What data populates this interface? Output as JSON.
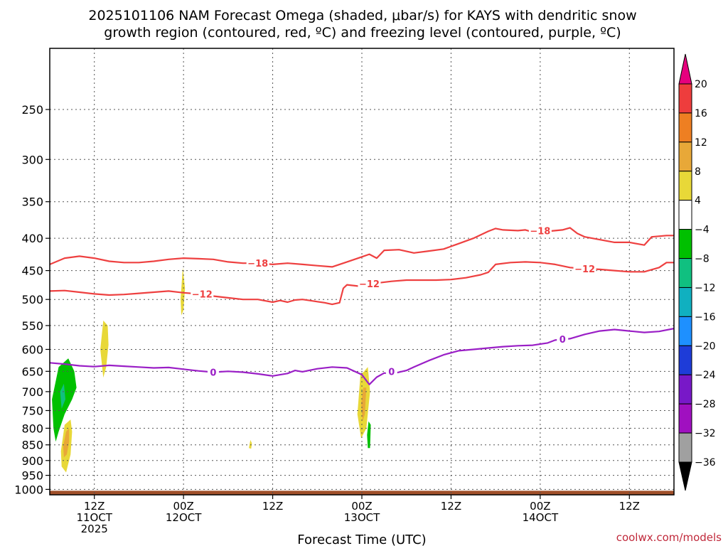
{
  "chart_data": {
    "type": "heatmap",
    "title_lines": [
      "2025101106 NAM Forecast Omega (shaded, μbar/s) for KAYS with dendritic snow",
      "growth region (contoured, red, ºC) and freezing level (contoured, purple, ºC)"
    ],
    "xlabel": "Forecast Time (UTC)",
    "credit": "coolwx.com/models",
    "x_range_hours": [
      0,
      84
    ],
    "y_range_hpa": [
      1020,
      200
    ],
    "y_ticks": [
      250,
      300,
      350,
      400,
      450,
      500,
      550,
      600,
      650,
      700,
      750,
      800,
      850,
      900,
      950,
      1000
    ],
    "x_ticks": [
      {
        "hour": 6,
        "lines": [
          "12Z",
          "11OCT",
          "2025"
        ]
      },
      {
        "hour": 18,
        "lines": [
          "00Z",
          "12OCT"
        ]
      },
      {
        "hour": 30,
        "lines": [
          "12Z"
        ]
      },
      {
        "hour": 42,
        "lines": [
          "00Z",
          "13OCT"
        ]
      },
      {
        "hour": 54,
        "lines": [
          "12Z"
        ]
      },
      {
        "hour": 66,
        "lines": [
          "00Z",
          "14OCT"
        ]
      },
      {
        "hour": 78,
        "lines": [
          "12Z"
        ]
      }
    ],
    "colorbar": {
      "levels": [
        20,
        16,
        12,
        8,
        4,
        -4,
        -8,
        -12,
        -16,
        -20,
        -24,
        -28,
        -32,
        -36
      ],
      "labels": [
        "20",
        "16",
        "12",
        "8",
        "4",
        "−4",
        "−8",
        "−12",
        "−16",
        "−20",
        "−24",
        "−28",
        "−32",
        "−36"
      ],
      "colors": [
        "#e6007e",
        "#ee3d3d",
        "#ee7f22",
        "#e8a838",
        "#e8d838",
        "#ffffff",
        "#00c000",
        "#10c080",
        "#10b0c0",
        "#1e90ff",
        "#1e3cd8",
        "#7818c8",
        "#a010c0",
        "#a0a0a0",
        "#000000"
      ]
    },
    "contours": [
      {
        "name": "-18C",
        "label": "−18",
        "color": "#ee4040",
        "points": [
          [
            0,
            440
          ],
          [
            2,
            430
          ],
          [
            4,
            427
          ],
          [
            6,
            430
          ],
          [
            8,
            435
          ],
          [
            10,
            437
          ],
          [
            12,
            437
          ],
          [
            14,
            435
          ],
          [
            16,
            432
          ],
          [
            18,
            430
          ],
          [
            20,
            431
          ],
          [
            22,
            432
          ],
          [
            24,
            436
          ],
          [
            26,
            438
          ],
          [
            28,
            438
          ],
          [
            30,
            440
          ],
          [
            32,
            438
          ],
          [
            34,
            440
          ],
          [
            36,
            442
          ],
          [
            38,
            444
          ],
          [
            40,
            436
          ],
          [
            42,
            428
          ],
          [
            43,
            424
          ],
          [
            44,
            430
          ],
          [
            45,
            418
          ],
          [
            47,
            417
          ],
          [
            49,
            422
          ],
          [
            51,
            419
          ],
          [
            53,
            416
          ],
          [
            55,
            408
          ],
          [
            57,
            400
          ],
          [
            59,
            390
          ],
          [
            60,
            386
          ],
          [
            61,
            388
          ],
          [
            63,
            389
          ],
          [
            64,
            388
          ],
          [
            65,
            391
          ],
          [
            67,
            390
          ],
          [
            69,
            388
          ],
          [
            70,
            385
          ],
          [
            71,
            393
          ],
          [
            72,
            398
          ],
          [
            74,
            402
          ],
          [
            76,
            406
          ],
          [
            78,
            406
          ],
          [
            80,
            410
          ],
          [
            81,
            398
          ],
          [
            83,
            396
          ],
          [
            84,
            396
          ]
        ]
      },
      {
        "name": "-12C",
        "label": "−12",
        "color": "#ee4040",
        "points": [
          [
            0,
            485
          ],
          [
            2,
            484
          ],
          [
            4,
            487
          ],
          [
            6,
            490
          ],
          [
            8,
            492
          ],
          [
            10,
            491
          ],
          [
            12,
            489
          ],
          [
            14,
            487
          ],
          [
            16,
            485
          ],
          [
            18,
            488
          ],
          [
            20,
            490
          ],
          [
            22,
            494
          ],
          [
            24,
            497
          ],
          [
            26,
            500
          ],
          [
            28,
            500
          ],
          [
            30,
            505
          ],
          [
            31,
            502
          ],
          [
            32,
            505
          ],
          [
            33,
            501
          ],
          [
            34,
            500
          ],
          [
            35,
            502
          ],
          [
            36,
            504
          ],
          [
            37,
            506
          ],
          [
            38,
            509
          ],
          [
            39,
            506
          ],
          [
            39.5,
            480
          ],
          [
            40,
            474
          ],
          [
            42,
            477
          ],
          [
            44,
            471
          ],
          [
            46,
            468
          ],
          [
            48,
            466
          ],
          [
            50,
            466
          ],
          [
            52,
            466
          ],
          [
            54,
            465
          ],
          [
            56,
            462
          ],
          [
            58,
            457
          ],
          [
            59,
            453
          ],
          [
            60,
            440
          ],
          [
            62,
            437
          ],
          [
            64,
            436
          ],
          [
            66,
            437
          ],
          [
            68,
            440
          ],
          [
            70,
            445
          ],
          [
            72,
            447
          ],
          [
            74,
            448
          ],
          [
            76,
            450
          ],
          [
            78,
            452
          ],
          [
            80,
            452
          ],
          [
            82,
            445
          ],
          [
            83,
            437
          ],
          [
            84,
            437
          ]
        ]
      },
      {
        "name": "0C",
        "label": "0",
        "color": "#9a1fc6",
        "points": [
          [
            0,
            630
          ],
          [
            2,
            633
          ],
          [
            4,
            637
          ],
          [
            6,
            639
          ],
          [
            8,
            636
          ],
          [
            10,
            638
          ],
          [
            12,
            640
          ],
          [
            14,
            642
          ],
          [
            16,
            641
          ],
          [
            18,
            645
          ],
          [
            20,
            649
          ],
          [
            22,
            652
          ],
          [
            24,
            650
          ],
          [
            26,
            652
          ],
          [
            28,
            656
          ],
          [
            30,
            661
          ],
          [
            32,
            655
          ],
          [
            33,
            648
          ],
          [
            34,
            651
          ],
          [
            36,
            644
          ],
          [
            38,
            640
          ],
          [
            40,
            642
          ],
          [
            42,
            658
          ],
          [
            43,
            682
          ],
          [
            44,
            664
          ],
          [
            45,
            654
          ],
          [
            46,
            656
          ],
          [
            48,
            648
          ],
          [
            49,
            640
          ],
          [
            51,
            625
          ],
          [
            53,
            612
          ],
          [
            55,
            603
          ],
          [
            57,
            600
          ],
          [
            59,
            597
          ],
          [
            61,
            594
          ],
          [
            63,
            592
          ],
          [
            65,
            591
          ],
          [
            67,
            586
          ],
          [
            68,
            580
          ],
          [
            70,
            577
          ],
          [
            72,
            568
          ],
          [
            74,
            561
          ],
          [
            76,
            558
          ],
          [
            78,
            561
          ],
          [
            80,
            564
          ],
          [
            82,
            562
          ],
          [
            84,
            556
          ]
        ]
      }
    ],
    "contour_labels": [
      {
        "contour": "-18C",
        "hour": 28,
        "hpa": 438,
        "text": "−18"
      },
      {
        "contour": "-18C",
        "hour": 66,
        "hpa": 389,
        "text": "−18"
      },
      {
        "contour": "-12C",
        "hour": 20.5,
        "hpa": 490,
        "text": "−12"
      },
      {
        "contour": "-12C",
        "hour": 43,
        "hpa": 472,
        "text": "−12"
      },
      {
        "contour": "-12C",
        "hour": 72,
        "hpa": 447,
        "text": "−12"
      },
      {
        "contour": "0C",
        "hour": 22,
        "hpa": 652,
        "text": "0"
      },
      {
        "contour": "0C",
        "hour": 46,
        "hpa": 650,
        "text": "0"
      },
      {
        "contour": "0C",
        "hour": 69,
        "hpa": 578,
        "text": "0"
      }
    ],
    "omega_regions": [
      {
        "color": "#00c000",
        "outline": [
          [
            0.5,
            800
          ],
          [
            0.3,
            720
          ],
          [
            1.2,
            640
          ],
          [
            2.5,
            620
          ],
          [
            3.3,
            650
          ],
          [
            3.6,
            690
          ],
          [
            3.0,
            720
          ],
          [
            2.0,
            760
          ],
          [
            1.2,
            810
          ],
          [
            0.8,
            840
          ]
        ]
      },
      {
        "color": "#10c080",
        "outline": [
          [
            1.4,
            700
          ],
          [
            1.9,
            680
          ],
          [
            2.1,
            720
          ],
          [
            1.6,
            745
          ]
        ]
      },
      {
        "color": "#e8d838",
        "outline": [
          [
            1.5,
            870
          ],
          [
            2.0,
            790
          ],
          [
            2.8,
            775
          ],
          [
            3.0,
            810
          ],
          [
            2.8,
            880
          ],
          [
            2.2,
            940
          ],
          [
            1.6,
            920
          ]
        ]
      },
      {
        "color": "#e8a838",
        "outline": [
          [
            1.8,
            855
          ],
          [
            2.2,
            810
          ],
          [
            2.6,
            800
          ],
          [
            2.6,
            840
          ],
          [
            2.3,
            880
          ],
          [
            1.9,
            890
          ]
        ]
      },
      {
        "color": "#e8d838",
        "outline": [
          [
            6.8,
            600
          ],
          [
            7.2,
            540
          ],
          [
            7.8,
            550
          ],
          [
            7.9,
            590
          ],
          [
            7.6,
            640
          ],
          [
            7.2,
            665
          ]
        ]
      },
      {
        "color": "#e8d838",
        "outline": [
          [
            17.6,
            500
          ],
          [
            17.9,
            445
          ],
          [
            18.2,
            480
          ],
          [
            18.0,
            520
          ],
          [
            17.7,
            530
          ]
        ]
      },
      {
        "color": "#e8d838",
        "outline": [
          [
            26.8,
            860
          ],
          [
            27.0,
            835
          ],
          [
            27.2,
            845
          ],
          [
            27.1,
            862
          ]
        ]
      },
      {
        "color": "#e8d838",
        "outline": [
          [
            41.4,
            760
          ],
          [
            41.8,
            660
          ],
          [
            42.8,
            640
          ],
          [
            43.1,
            700
          ],
          [
            42.6,
            800
          ],
          [
            41.9,
            830
          ]
        ]
      },
      {
        "color": "#e8a838",
        "outline": [
          [
            41.9,
            730
          ],
          [
            42.2,
            690
          ],
          [
            42.6,
            690
          ],
          [
            42.4,
            760
          ],
          [
            42.1,
            780
          ]
        ]
      },
      {
        "color": "#00c000",
        "outline": [
          [
            42.7,
            820
          ],
          [
            42.9,
            780
          ],
          [
            43.2,
            790
          ],
          [
            43.1,
            860
          ],
          [
            42.8,
            860
          ]
        ]
      }
    ],
    "ground": {
      "color": "#a0502a",
      "top_hpa": 1005,
      "bottom_hpa": 1020
    }
  }
}
